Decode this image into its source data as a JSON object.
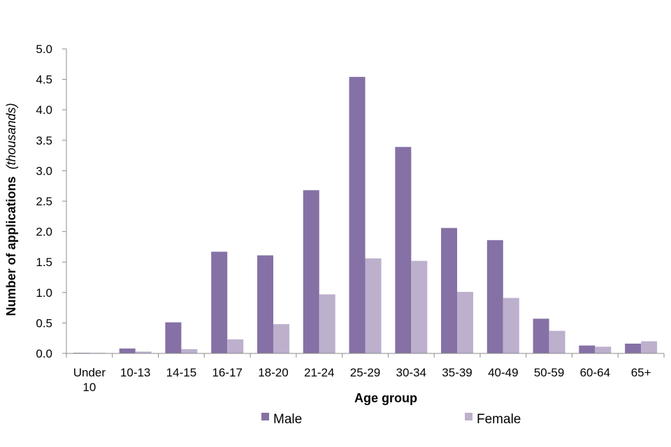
{
  "chart_data": {
    "type": "bar",
    "title": "",
    "xlabel": "Age group",
    "ylabel": "Number of applications",
    "ylabel_italic": "(thousands)",
    "categories": [
      "Under 10",
      "10-13",
      "14-15",
      "16-17",
      "18-20",
      "21-24",
      "25-29",
      "30-34",
      "35-39",
      "40-49",
      "50-59",
      "60-64",
      "65+"
    ],
    "category_lines": [
      [
        "Under",
        "10"
      ],
      [
        "10-13"
      ],
      [
        "14-15"
      ],
      [
        "16-17"
      ],
      [
        "18-20"
      ],
      [
        "21-24"
      ],
      [
        "25-29"
      ],
      [
        "30-34"
      ],
      [
        "35-39"
      ],
      [
        "40-49"
      ],
      [
        "50-59"
      ],
      [
        "60-64"
      ],
      [
        "65+"
      ]
    ],
    "series": [
      {
        "name": "Male",
        "color": "#8571a5",
        "values": [
          0.01,
          0.08,
          0.51,
          1.67,
          1.61,
          2.68,
          4.54,
          3.39,
          2.06,
          1.86,
          0.57,
          0.13,
          0.16
        ]
      },
      {
        "name": "Female",
        "color": "#bcb0cd",
        "values": [
          0.01,
          0.03,
          0.07,
          0.23,
          0.48,
          0.97,
          1.56,
          1.52,
          1.01,
          0.91,
          0.37,
          0.11,
          0.2
        ]
      }
    ],
    "ylim": [
      0,
      5
    ],
    "yticks": [
      "0.0",
      "0.5",
      "1.0",
      "1.5",
      "2.0",
      "2.5",
      "3.0",
      "3.5",
      "4.0",
      "4.5",
      "5.0"
    ],
    "grid": false,
    "legend_position": "bottom"
  }
}
